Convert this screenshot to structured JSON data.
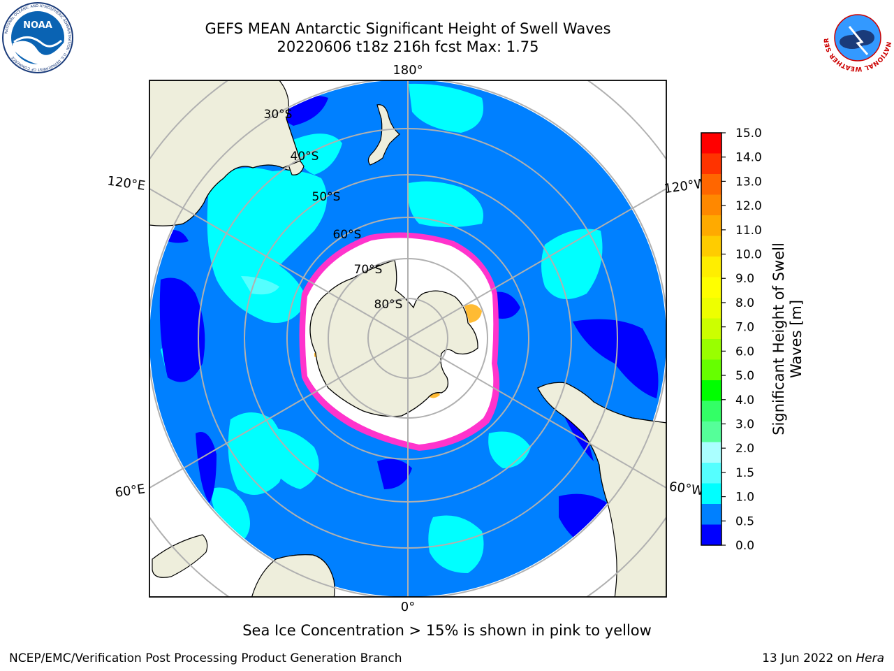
{
  "title": {
    "line1": "GEFS MEAN Antarctic Significant Height of Swell Waves",
    "line2": "20220606 t18z 216h fcst   Max: 1.75"
  },
  "map": {
    "projection": "south-polar-stereographic",
    "longitude_labels": [
      "180°",
      "120°E",
      "120°W",
      "60°E",
      "60°W",
      "0°"
    ],
    "latitude_labels": [
      "30°S",
      "40°S",
      "50°S",
      "60°S",
      "70°S",
      "80°S"
    ],
    "colors": {
      "ocean_0_5_to_1_0": "#0080ff",
      "ocean_0_to_0_5": "#0000ff",
      "ocean_1_0_to_1_5": "#00ffff",
      "ocean_1_5_to_2_0": "#4ffff6",
      "land": "#eeeedc",
      "sea_ice_edge": "#ff33cc",
      "sea_ice_core": "#ffffff",
      "sea_ice_high": "#ffbb33",
      "grid": "#b0b0b0"
    }
  },
  "colorbar": {
    "label": "Significant Height of Swell Waves [m]",
    "label_line1": "Significant Height of Swell",
    "label_line2": "Waves [m]",
    "ticks": [
      "15.0",
      "14.0",
      "13.0",
      "12.0",
      "11.0",
      "10.0",
      "9.0",
      "8.0",
      "7.0",
      "6.0",
      "5.0",
      "4.0",
      "3.0",
      "2.0",
      "1.5",
      "1.0",
      "0.5",
      "0.0"
    ],
    "bands": [
      "#ff0000",
      "#ff3300",
      "#ff6600",
      "#ff8800",
      "#ffaa00",
      "#ffcc00",
      "#ffee00",
      "#ffff00",
      "#eeff00",
      "#ccff00",
      "#99ff00",
      "#66ff00",
      "#00ff00",
      "#33ff66",
      "#55ff99",
      "#aaffff",
      "#55ffff",
      "#00ffff",
      "#0080ff",
      "#0000ff"
    ]
  },
  "note": "Sea Ice Concentration > 15% is shown in pink to yellow",
  "footer": {
    "left": "NCEP/EMC/Verification Post Processing Product Generation Branch",
    "right_prefix": "13 Jun 2022 on ",
    "right_host": "Hera"
  },
  "logos": {
    "noaa": "NOAA",
    "noaa_ring": "NATIONAL OCEANIC AND ATMOSPHERIC ADMINISTRATION · U.S. DEPARTMENT OF COMMERCE",
    "nws_ring": "NATIONAL WEATHER SERVICE"
  }
}
